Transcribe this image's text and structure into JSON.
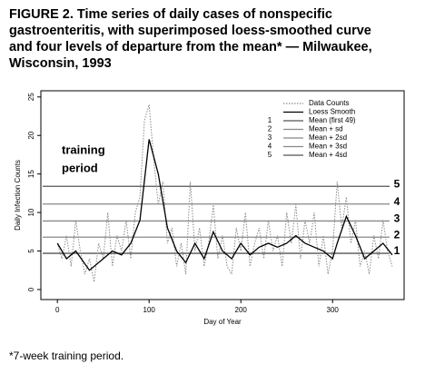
{
  "chart_data": {
    "type": "line",
    "title": [
      "FIGURE 2. Time series of daily cases of nonspecific",
      "gastroenteritis, with superimposed loess-smoothed curve",
      "and four levels of departure from the mean* — Milwaukee,",
      "Wisconsin, 1993"
    ],
    "xlabel": "Day of Year",
    "ylabel": "Daily Infection Counts",
    "xlim": [
      -18,
      378
    ],
    "ylim": [
      -1.3,
      25.8
    ],
    "xticks": [
      0,
      100,
      200,
      300
    ],
    "yticks": [
      0,
      5,
      10,
      15,
      20,
      25
    ],
    "annotation": [
      "training",
      "period"
    ],
    "footnote": "*7-week training period.",
    "series": [
      {
        "name": "Data Counts",
        "color": "#8a8a8a",
        "style": "dotted",
        "x": [
          0,
          5,
          10,
          15,
          20,
          25,
          30,
          35,
          40,
          45,
          50,
          55,
          60,
          65,
          70,
          75,
          80,
          85,
          90,
          95,
          100,
          105,
          110,
          115,
          120,
          125,
          130,
          135,
          140,
          145,
          150,
          155,
          160,
          165,
          170,
          175,
          180,
          185,
          190,
          195,
          200,
          205,
          210,
          215,
          220,
          225,
          230,
          235,
          240,
          245,
          250,
          255,
          260,
          265,
          270,
          275,
          280,
          285,
          290,
          295,
          300,
          305,
          310,
          315,
          320,
          325,
          330,
          335,
          340,
          345,
          350,
          355,
          360,
          365
        ],
        "values": [
          6,
          4,
          7,
          3,
          9,
          5,
          2,
          4,
          1,
          6,
          4,
          10,
          3,
          7,
          5,
          9,
          4,
          10,
          12,
          22,
          24,
          17,
          11,
          14,
          6,
          8,
          3,
          6,
          2,
          14,
          5,
          8,
          3,
          6,
          11,
          4,
          7,
          3,
          2,
          8,
          5,
          10,
          3,
          6,
          8,
          4,
          9,
          5,
          7,
          3,
          10,
          6,
          11,
          4,
          9,
          6,
          10,
          3,
          7,
          2,
          5,
          14,
          8,
          12,
          6,
          9,
          3,
          5,
          2,
          7,
          4,
          9,
          5,
          3
        ]
      },
      {
        "name": "Loess Smooth",
        "color": "#000000",
        "style": "solid",
        "x": [
          0,
          10,
          20,
          35,
          50,
          60,
          70,
          80,
          90,
          100,
          110,
          120,
          130,
          140,
          150,
          160,
          170,
          180,
          190,
          200,
          210,
          220,
          230,
          240,
          250,
          260,
          270,
          280,
          290,
          300,
          305,
          315,
          325,
          335,
          345,
          355,
          365
        ],
        "values": [
          6,
          4,
          5,
          2.5,
          4,
          5,
          4.5,
          6,
          9,
          19.5,
          15,
          8,
          5,
          3.5,
          6,
          4,
          7.5,
          5,
          4,
          6,
          4.5,
          5.5,
          6,
          5.5,
          6,
          7,
          6,
          5.5,
          5,
          4,
          6,
          9.5,
          7,
          4,
          5,
          6,
          4.5
        ]
      }
    ],
    "hlines": [
      {
        "name": "Mean (first 49)",
        "label": "1",
        "value": 4.7,
        "color": "#555555"
      },
      {
        "name": "Mean + sd",
        "label": "2",
        "value": 6.8,
        "color": "#888888"
      },
      {
        "name": "Mean + 2sd",
        "label": "3",
        "value": 8.9,
        "color": "#888888"
      },
      {
        "name": "Mean + 3sd",
        "label": "4",
        "value": 11.1,
        "color": "#888888"
      },
      {
        "name": "Mean + 4sd",
        "label": "5",
        "value": 13.4,
        "color": "#555555"
      }
    ]
  }
}
